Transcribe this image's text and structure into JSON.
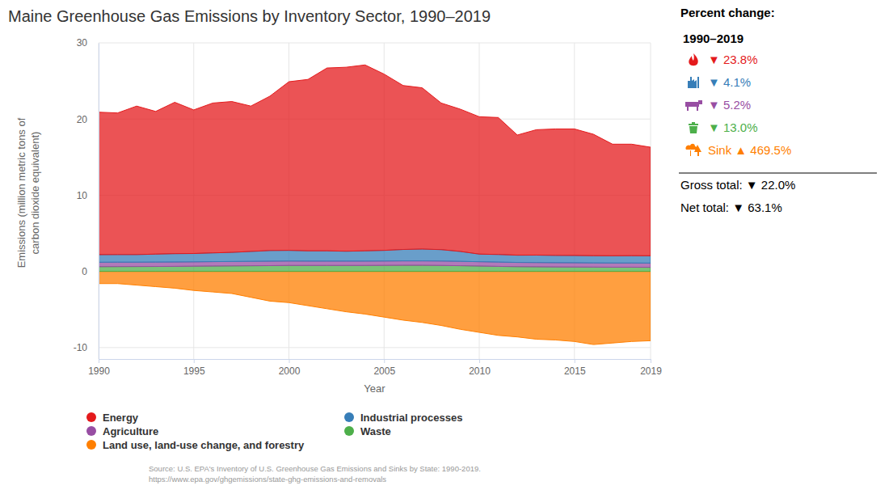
{
  "chart_data": {
    "type": "area",
    "title": "Maine Greenhouse Gas Emissions by Inventory Sector, 1990–2019",
    "x_label": "Year",
    "y_label": [
      "Emissions (million metric tons of",
      "carbon dioxide equivalent)"
    ],
    "x": [
      1990,
      1991,
      1992,
      1993,
      1994,
      1995,
      1996,
      1997,
      1998,
      1999,
      2000,
      2001,
      2002,
      2003,
      2004,
      2005,
      2006,
      2007,
      2008,
      2009,
      2010,
      2011,
      2012,
      2013,
      2014,
      2015,
      2016,
      2017,
      2018,
      2019
    ],
    "series": [
      {
        "name": "Energy",
        "color": "#e41a1c",
        "values": [
          18.7,
          18.59,
          19.49,
          18.73,
          19.87,
          18.85,
          19.67,
          19.8,
          19.08,
          20.26,
          22.14,
          22.5,
          24.0,
          24.15,
          24.4,
          23.14,
          21.52,
          21.17,
          19.24,
          18.68,
          18.03,
          17.98,
          15.77,
          16.46,
          16.6,
          16.61,
          15.94,
          14.65,
          14.64,
          14.25
        ]
      },
      {
        "name": "Industrial processes",
        "color": "#377eb8",
        "values": [
          1.0,
          1.0,
          1.0,
          1.05,
          1.1,
          1.1,
          1.15,
          1.2,
          1.3,
          1.4,
          1.4,
          1.35,
          1.35,
          1.3,
          1.35,
          1.4,
          1.5,
          1.55,
          1.5,
          1.3,
          1.0,
          1.0,
          0.95,
          0.98,
          0.96,
          0.96,
          0.95,
          0.95,
          0.96,
          0.96
        ]
      },
      {
        "name": "Agriculture",
        "color": "#984ea3",
        "values": [
          0.58,
          0.58,
          0.57,
          0.57,
          0.57,
          0.57,
          0.58,
          0.58,
          0.58,
          0.58,
          0.58,
          0.57,
          0.57,
          0.57,
          0.57,
          0.57,
          0.58,
          0.58,
          0.58,
          0.57,
          0.57,
          0.56,
          0.56,
          0.56,
          0.56,
          0.56,
          0.55,
          0.55,
          0.55,
          0.55
        ]
      },
      {
        "name": "Waste",
        "color": "#4daf4a",
        "values": [
          0.62,
          0.63,
          0.64,
          0.65,
          0.66,
          0.68,
          0.7,
          0.72,
          0.74,
          0.76,
          0.78,
          0.78,
          0.78,
          0.78,
          0.78,
          0.79,
          0.8,
          0.8,
          0.78,
          0.75,
          0.7,
          0.66,
          0.62,
          0.6,
          0.58,
          0.57,
          0.56,
          0.55,
          0.55,
          0.54
        ]
      },
      {
        "name": "Land use, land-use change, and forestry",
        "color": "#ff7f00",
        "values": [
          -1.6,
          -1.6,
          -1.8,
          -2.0,
          -2.2,
          -2.5,
          -2.7,
          -2.9,
          -3.4,
          -3.9,
          -4.1,
          -4.5,
          -4.9,
          -5.3,
          -5.6,
          -6.0,
          -6.4,
          -6.7,
          -7.1,
          -7.6,
          -8.0,
          -8.4,
          -8.6,
          -8.9,
          -9.0,
          -9.2,
          -9.6,
          -9.4,
          -9.2,
          -9.1
        ]
      }
    ],
    "xlim": [
      1990,
      2019
    ],
    "xticks": [
      1990,
      1995,
      2000,
      2005,
      2010,
      2015,
      2019
    ],
    "ylim": [
      -11.5,
      30
    ],
    "yticks": [
      -10,
      0,
      10,
      20,
      30
    ],
    "stacked": true,
    "grid": true,
    "legend": "bottom",
    "annotations": {
      "heading": "Percent change:",
      "period": "1990–2019",
      "changes": [
        {
          "label": "▼ 23.8%",
          "color": "#e41a1c"
        },
        {
          "label": "▼ 4.1%",
          "color": "#377eb8"
        },
        {
          "label": "▼ 5.2%",
          "color": "#984ea3"
        },
        {
          "label": "▼ 13.0%",
          "color": "#4daf4a"
        },
        {
          "label": "Sink ▲ 469.5%",
          "color": "#ff7f00"
        }
      ],
      "totals": [
        "Gross total: ▼ 22.0%",
        "Net total: ▼ 63.1%"
      ]
    },
    "source": [
      "Source: U.S. EPA's Inventory of U.S. Greenhouse Gas Emissions and Sinks by State: 1990-2019.",
      "https://www.epa.gov/ghgemissions/state-ghg-emissions-and-removals"
    ]
  }
}
